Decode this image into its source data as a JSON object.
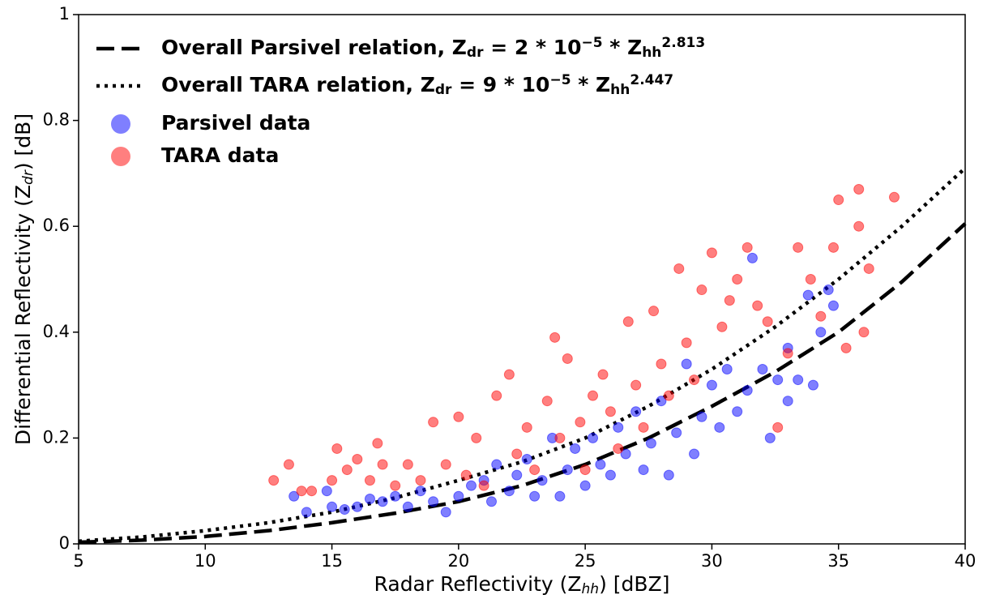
{
  "chart_data": {
    "type": "scatter",
    "xlabel": [
      {
        "text": "Radar Reflectivity (Z"
      },
      {
        "text": "hh",
        "style": "sub-italic"
      },
      {
        "text": ") [dBZ]"
      }
    ],
    "ylabel": [
      {
        "text": "Differential Reflectivity (Z"
      },
      {
        "text": "dr",
        "style": "sub-italic"
      },
      {
        "text": ") [dB]"
      }
    ],
    "xlim": [
      5,
      40
    ],
    "ylim": [
      0,
      1
    ],
    "xticks": [
      5,
      10,
      15,
      20,
      25,
      30,
      35,
      40
    ],
    "yticks": [
      0,
      0.2,
      0.4,
      0.6,
      0.8,
      1
    ],
    "legend": "upper left",
    "series": [
      {
        "name": [
          {
            "text": "Overall Parsivel relation, Z"
          },
          {
            "text": "dr",
            "style": "sub"
          },
          {
            "text": " = 2 * 10"
          },
          {
            "text": "−5",
            "style": "sup"
          },
          {
            "text": " * Z"
          },
          {
            "text": "hh",
            "style": "sub"
          },
          {
            "text": "2.813",
            "style": "sup"
          }
        ],
        "type": "line",
        "dash": "dashed",
        "color": "#000000",
        "x": [
          5,
          7.5,
          10,
          12.5,
          15,
          17.5,
          20,
          22.5,
          25,
          27.5,
          30,
          32.5,
          35,
          37.5,
          40
        ],
        "values": [
          0.003,
          0.007,
          0.014,
          0.025,
          0.04,
          0.058,
          0.08,
          0.11,
          0.15,
          0.2,
          0.26,
          0.325,
          0.4,
          0.495,
          0.605
        ]
      },
      {
        "name": [
          {
            "text": "Overall TARA relation, Z"
          },
          {
            "text": "dr",
            "style": "sub"
          },
          {
            "text": " = 9 * 10"
          },
          {
            "text": "−5",
            "style": "sup"
          },
          {
            "text": " * Z"
          },
          {
            "text": "hh",
            "style": "sub"
          },
          {
            "text": "2.447",
            "style": "sup"
          }
        ],
        "type": "line",
        "dash": "dotted",
        "color": "#000000",
        "x": [
          5,
          7.5,
          10,
          12.5,
          15,
          17.5,
          20,
          22.5,
          25,
          27.5,
          30,
          32.5,
          35,
          37.5,
          40
        ],
        "values": [
          0.005,
          0.013,
          0.025,
          0.04,
          0.06,
          0.087,
          0.12,
          0.155,
          0.2,
          0.26,
          0.33,
          0.41,
          0.5,
          0.6,
          0.71
        ]
      },
      {
        "name": "Parsivel data",
        "type": "scatter",
        "color": "#0000ff",
        "opacity": 0.5,
        "x": [
          13.5,
          14,
          14.8,
          15,
          15.5,
          16,
          16.5,
          17,
          17.5,
          18,
          18.5,
          19,
          19.5,
          20,
          20.5,
          21,
          21.3,
          21.5,
          22,
          22.3,
          22.7,
          23,
          23.3,
          23.7,
          24,
          24.3,
          24.6,
          25,
          25.3,
          25.6,
          26,
          26.3,
          26.6,
          27,
          27.3,
          27.6,
          28,
          28.3,
          28.6,
          29,
          29.3,
          29.6,
          30,
          30.3,
          30.6,
          31,
          31.4,
          31.6,
          32,
          32.3,
          32.6,
          33,
          33.4,
          33.8,
          34,
          34.3,
          34.6,
          34.8,
          33
        ],
        "values": [
          0.09,
          0.06,
          0.1,
          0.07,
          0.065,
          0.07,
          0.085,
          0.08,
          0.09,
          0.07,
          0.1,
          0.08,
          0.06,
          0.09,
          0.11,
          0.12,
          0.08,
          0.15,
          0.1,
          0.13,
          0.16,
          0.09,
          0.12,
          0.2,
          0.09,
          0.14,
          0.18,
          0.11,
          0.2,
          0.15,
          0.13,
          0.22,
          0.17,
          0.25,
          0.14,
          0.19,
          0.27,
          0.13,
          0.21,
          0.34,
          0.17,
          0.24,
          0.3,
          0.22,
          0.33,
          0.25,
          0.29,
          0.54,
          0.33,
          0.2,
          0.31,
          0.37,
          0.31,
          0.47,
          0.3,
          0.4,
          0.48,
          0.45,
          0.27
        ]
      },
      {
        "name": "TARA data",
        "type": "scatter",
        "color": "#ff0000",
        "opacity": 0.5,
        "x": [
          12.7,
          13.3,
          13.8,
          14.2,
          15,
          15.2,
          15.6,
          16,
          16.5,
          16.8,
          17,
          17.5,
          18,
          18.5,
          19,
          19.5,
          20,
          20.3,
          20.7,
          21,
          21.5,
          22,
          22.3,
          22.7,
          23,
          23.5,
          23.8,
          24,
          24.3,
          24.8,
          25,
          25.3,
          25.7,
          26,
          26.3,
          26.7,
          27,
          27.3,
          27.7,
          28,
          28.3,
          28.7,
          29,
          29.3,
          29.6,
          30,
          30.4,
          30.7,
          31,
          31.4,
          31.8,
          32.2,
          32.6,
          33,
          33.4,
          33.9,
          34.3,
          34.8,
          35,
          35.3,
          35.8,
          36,
          36.2,
          37.2,
          35.8
        ],
        "values": [
          0.12,
          0.15,
          0.1,
          0.1,
          0.12,
          0.18,
          0.14,
          0.16,
          0.12,
          0.19,
          0.15,
          0.11,
          0.15,
          0.12,
          0.23,
          0.15,
          0.24,
          0.13,
          0.2,
          0.11,
          0.28,
          0.32,
          0.17,
          0.22,
          0.14,
          0.27,
          0.39,
          0.2,
          0.35,
          0.23,
          0.14,
          0.28,
          0.32,
          0.25,
          0.18,
          0.42,
          0.3,
          0.22,
          0.44,
          0.34,
          0.28,
          0.52,
          0.38,
          0.31,
          0.48,
          0.55,
          0.41,
          0.46,
          0.5,
          0.56,
          0.45,
          0.42,
          0.22,
          0.36,
          0.56,
          0.5,
          0.43,
          0.56,
          0.65,
          0.37,
          0.67,
          0.4,
          0.52,
          0.655,
          0.6
        ]
      }
    ]
  }
}
